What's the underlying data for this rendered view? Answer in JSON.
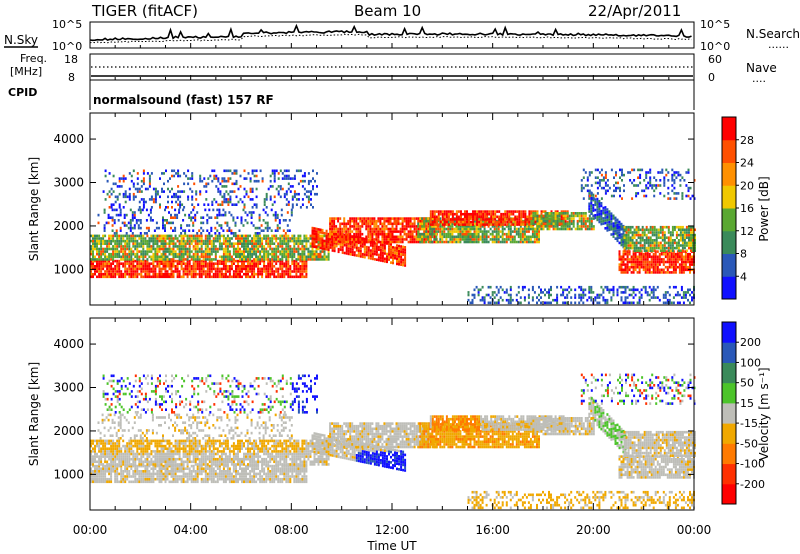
{
  "header": {
    "station": "TIGER (fitACF)",
    "beam": "Beam 10",
    "date": "22/Apr/2011",
    "nsky_label": "N.Sky",
    "nsearch_label": "N.Search",
    "nsearch_key": "......",
    "freq_label_1": "Freq.",
    "freq_label_2": "[MHz]",
    "nave_label": "Nave",
    "nave_key": "....",
    "cpid_label": "CPID",
    "cpid_value": "normalsound (fast) 157 RF",
    "noise_ticks_left": [
      "10^5",
      "10^0"
    ],
    "noise_ticks_right": [
      "10^5",
      "10^0"
    ],
    "freq_ticks_left": [
      "18",
      "8"
    ],
    "freq_ticks_right": [
      "60",
      "0"
    ]
  },
  "chart_data": [
    {
      "type": "heatmap",
      "panel": "power",
      "ylabel": "Slant Range [km]",
      "xlabel": "Time UT",
      "x_ticks": [
        "00:00",
        "04:00",
        "08:00",
        "12:00",
        "16:00",
        "20:00",
        "00:00"
      ],
      "y_ticks": [
        1000,
        2000,
        3000,
        4000
      ],
      "xlim_hours": [
        0,
        24
      ],
      "ylim_km": [
        180,
        4600
      ],
      "colorbar": {
        "label": "Power [dB]",
        "ticks": [
          "4",
          "8",
          "12",
          "16",
          "20",
          "24",
          "28"
        ],
        "range": [
          0,
          30
        ]
      }
    },
    {
      "type": "heatmap",
      "panel": "velocity",
      "ylabel": "Slant Range [km]",
      "xlabel": "Time UT",
      "x_ticks": [
        "00:00",
        "04:00",
        "08:00",
        "12:00",
        "16:00",
        "20:00",
        "00:00"
      ],
      "y_ticks": [
        1000,
        2000,
        3000,
        4000
      ],
      "xlim_hours": [
        0,
        24
      ],
      "ylim_km": [
        180,
        4600
      ],
      "colorbar": {
        "label": "Velocity [m s⁻¹]",
        "ticks": [
          "200",
          "100",
          "50",
          "15",
          "-15",
          "-50",
          "-100",
          "-200"
        ]
      }
    }
  ],
  "colors": {
    "power_scale": [
      "#1010ff",
      "#2a58b8",
      "#3a8a5a",
      "#5aa832",
      "#f0c800",
      "#ff9000",
      "#ff5000",
      "#ff0000"
    ],
    "velocity_scale": [
      "#1010ff",
      "#2a58b8",
      "#3a8a5a",
      "#4cc42a",
      "#bebeb8",
      "#f0a800",
      "#ff7a00",
      "#ff3000",
      "#ff0000"
    ],
    "ground_scatter": "#bebeb8"
  }
}
